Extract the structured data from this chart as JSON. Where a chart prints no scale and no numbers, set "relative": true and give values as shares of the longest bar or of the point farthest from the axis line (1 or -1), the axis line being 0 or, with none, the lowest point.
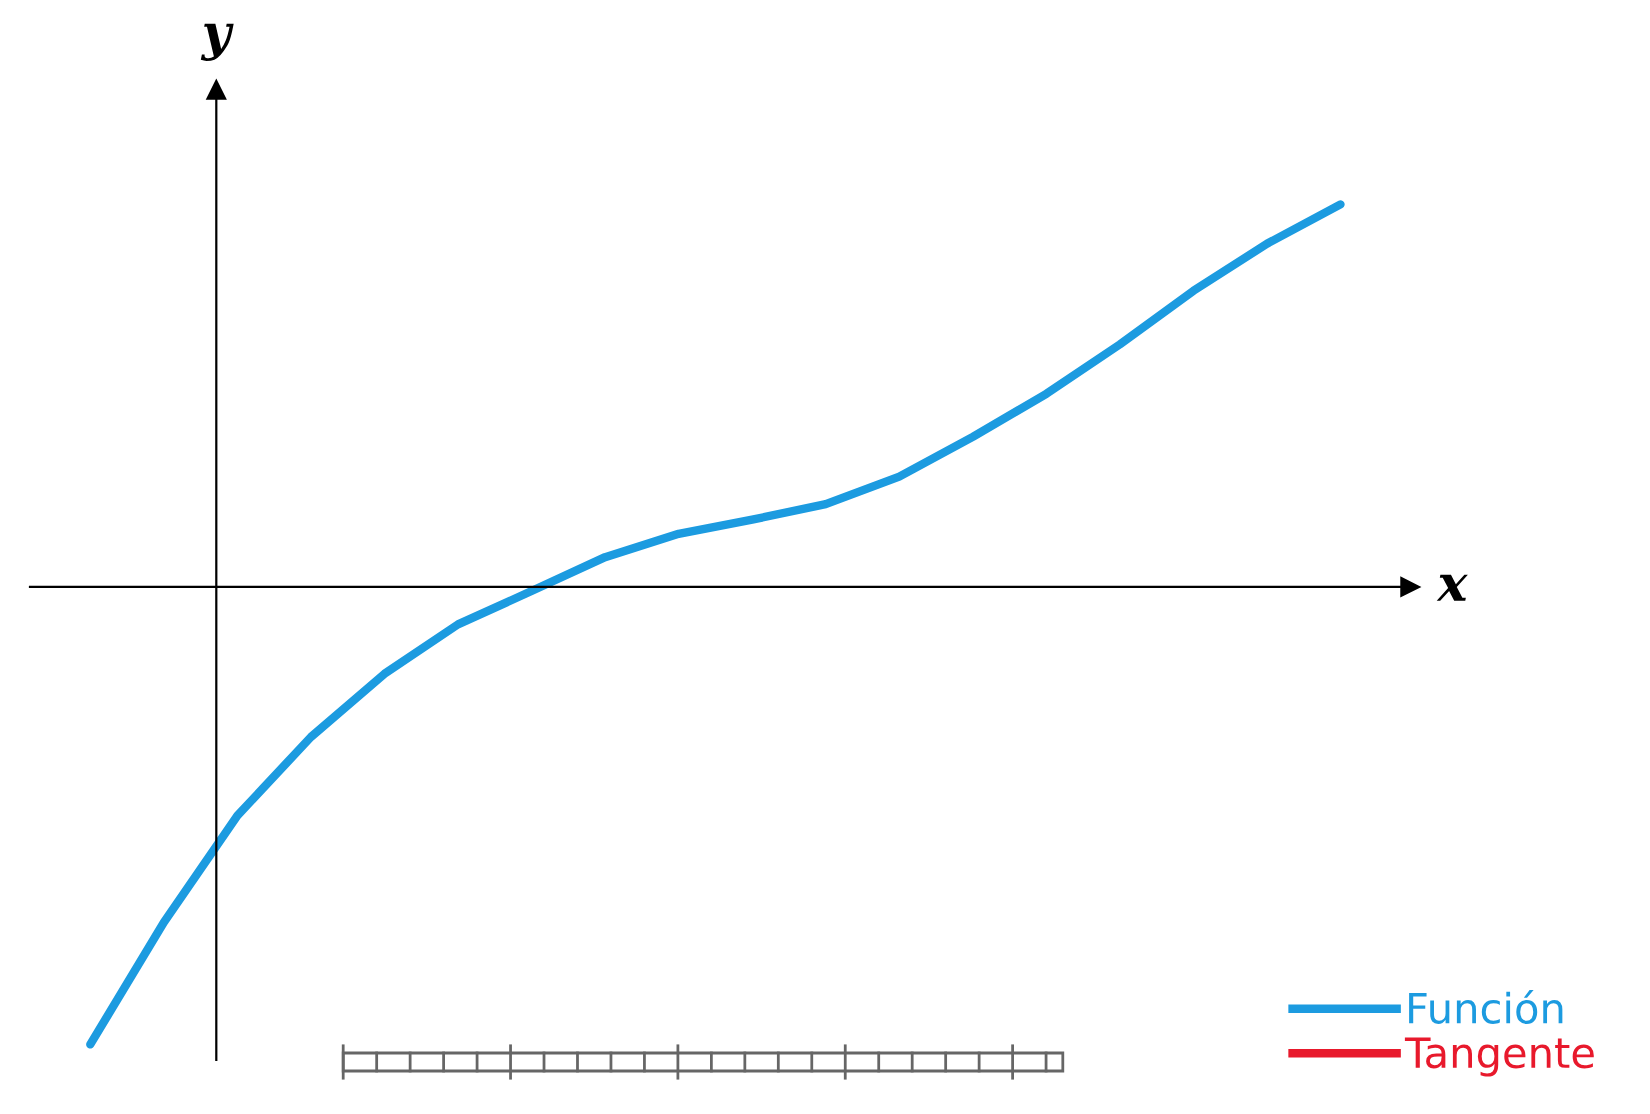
{
  "chart_data": {
    "type": "line",
    "xlabel": "x",
    "ylabel": "y",
    "relative": true,
    "legend": "bottom right",
    "marker": "none",
    "line_style": "solid",
    "categories": [
      null,
      null,
      null,
      null,
      null,
      null,
      null,
      null,
      null,
      null,
      null,
      null,
      null,
      null,
      null,
      null,
      null,
      null
    ],
    "series": [
      {
        "name": "Función",
        "color": "#1c9be0",
        "values": [
          -1,
          -0.733,
          -0.5,
          -0.328,
          -0.19,
          -0.082,
          -0.009,
          0.065,
          0.116,
          0.147,
          0.181,
          0.241,
          0.328,
          0.422,
          0.53,
          0.647,
          0.75,
          0.836
        ]
      },
      {
        "name": "Tangente",
        "color": "#e8192c",
        "values": [
          null,
          null,
          null,
          null,
          null,
          null,
          null,
          null,
          null,
          null,
          null,
          null,
          null,
          null,
          null,
          null,
          null,
          null
        ]
      }
    ]
  }
}
